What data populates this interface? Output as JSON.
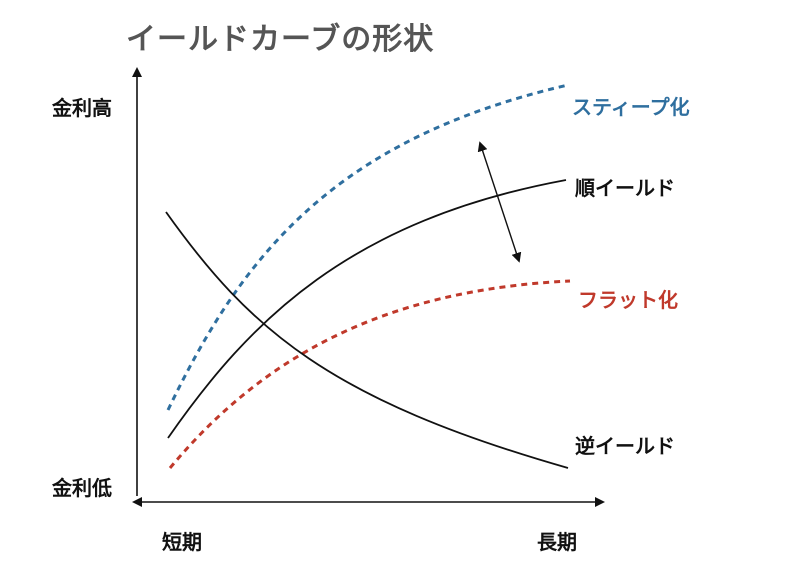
{
  "title": "イールドカーブの形状",
  "axes": {
    "y_high": "金利高",
    "y_low": "金利低",
    "x_short": "短期",
    "x_long": "長期"
  },
  "curves": {
    "steep": {
      "label": "スティープ化",
      "color": "#2f6f9f",
      "style": "dashed"
    },
    "normal": {
      "label": "順イールド",
      "color": "#111111",
      "style": "solid"
    },
    "flat": {
      "label": "フラット化",
      "color": "#c0392b",
      "style": "dashed"
    },
    "inverted": {
      "label": "逆イールド",
      "color": "#111111",
      "style": "solid"
    }
  }
}
